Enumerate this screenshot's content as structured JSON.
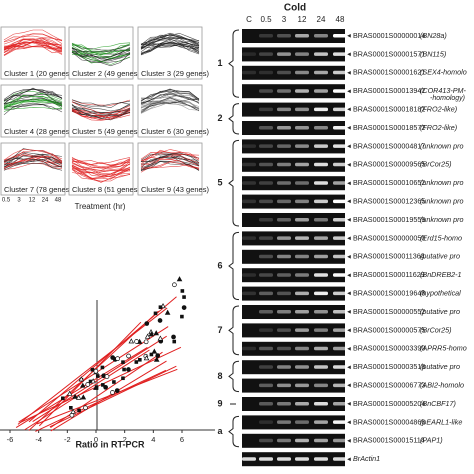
{
  "clusters": {
    "panels": [
      "Cluster 1 (20 genes)",
      "Cluster 2 (49 genes)",
      "Cluster 3 (29 genes)",
      "Cluster 4 (28 genes)",
      "Cluster 5 (49 genes)",
      "Cluster 6 (30 genes)",
      "Cluster 7 (78 genes)",
      "Cluster 8 (51 genes)",
      "Cluster 9 (43 genes)"
    ],
    "xticks": [
      "0.5",
      "3",
      "12",
      "24",
      "48"
    ],
    "xlabel": "Treatment (hr)"
  },
  "gel": {
    "title": "Cold",
    "columns": [
      "C",
      "0.5",
      "3",
      "12",
      "24",
      "48"
    ],
    "rows": [
      {
        "id": "BRAS0001S00000014",
        "note": "(BN28a)"
      },
      {
        "id": "BRAS0001S00001571",
        "note": "(BN115)"
      },
      {
        "id": "BRAS0001S00001621",
        "note": "(SEX4-homolo"
      },
      {
        "id": "BRAS0001S00013942",
        "note": "(COR413-PM-"
      },
      {
        "id": "BRAS0001S00018182",
        "note": "(FRO2-like)"
      },
      {
        "id": "BRAS0001S00018572",
        "note": "(FRO2-like)"
      },
      {
        "id": "BRAS0001S00004817",
        "note": "(unknown pro"
      },
      {
        "id": "BRAS0001S00009565",
        "note": "(BrCor25)"
      },
      {
        "id": "BRAS0001S00010652",
        "note": "(unknown pro"
      },
      {
        "id": "BRAS0001S00012365",
        "note": "(unknown pro"
      },
      {
        "id": "BRAS0001S00019559",
        "note": "(unknown pro"
      },
      {
        "id": "BRAS0001S00000050",
        "note": "(Erd15-homo"
      },
      {
        "id": "BRAS0001S00011364",
        "note": "(putative pro"
      },
      {
        "id": "BRAS0001S00011629",
        "note": "(BnDREB2-1"
      },
      {
        "id": "BRAS0001S00019648",
        "note": "(hypothetical"
      },
      {
        "id": "BRAS0001S00000552",
        "note": "(putative pro"
      },
      {
        "id": "BRAS0001S00000575",
        "note": "(BrCor25)"
      },
      {
        "id": "BRAS0001S00003390",
        "note": "(APRR5-homo"
      },
      {
        "id": "BRAS0001S00003518",
        "note": "(putative pro"
      },
      {
        "id": "BRAS0001S00006773",
        "note": "(ABI2-homolo"
      },
      {
        "id": "BRAS0001S00005204",
        "note": "(BnCBF17)"
      },
      {
        "id": "BRAS0001S00004866",
        "note": "(pEARL1-like"
      },
      {
        "id": "BRAS0001S00015114",
        "note": "(PAP1)"
      },
      {
        "id": "BrActin1",
        "note": ""
      }
    ],
    "extra_note": "-homology)",
    "groups": [
      "1",
      "2",
      "5",
      "6",
      "7",
      "8",
      "9",
      "a"
    ]
  },
  "scatter": {
    "xlabel": "Ratio in RT-PCR",
    "xticks": [
      -6,
      -4,
      -2,
      0,
      2,
      4,
      6
    ]
  }
}
